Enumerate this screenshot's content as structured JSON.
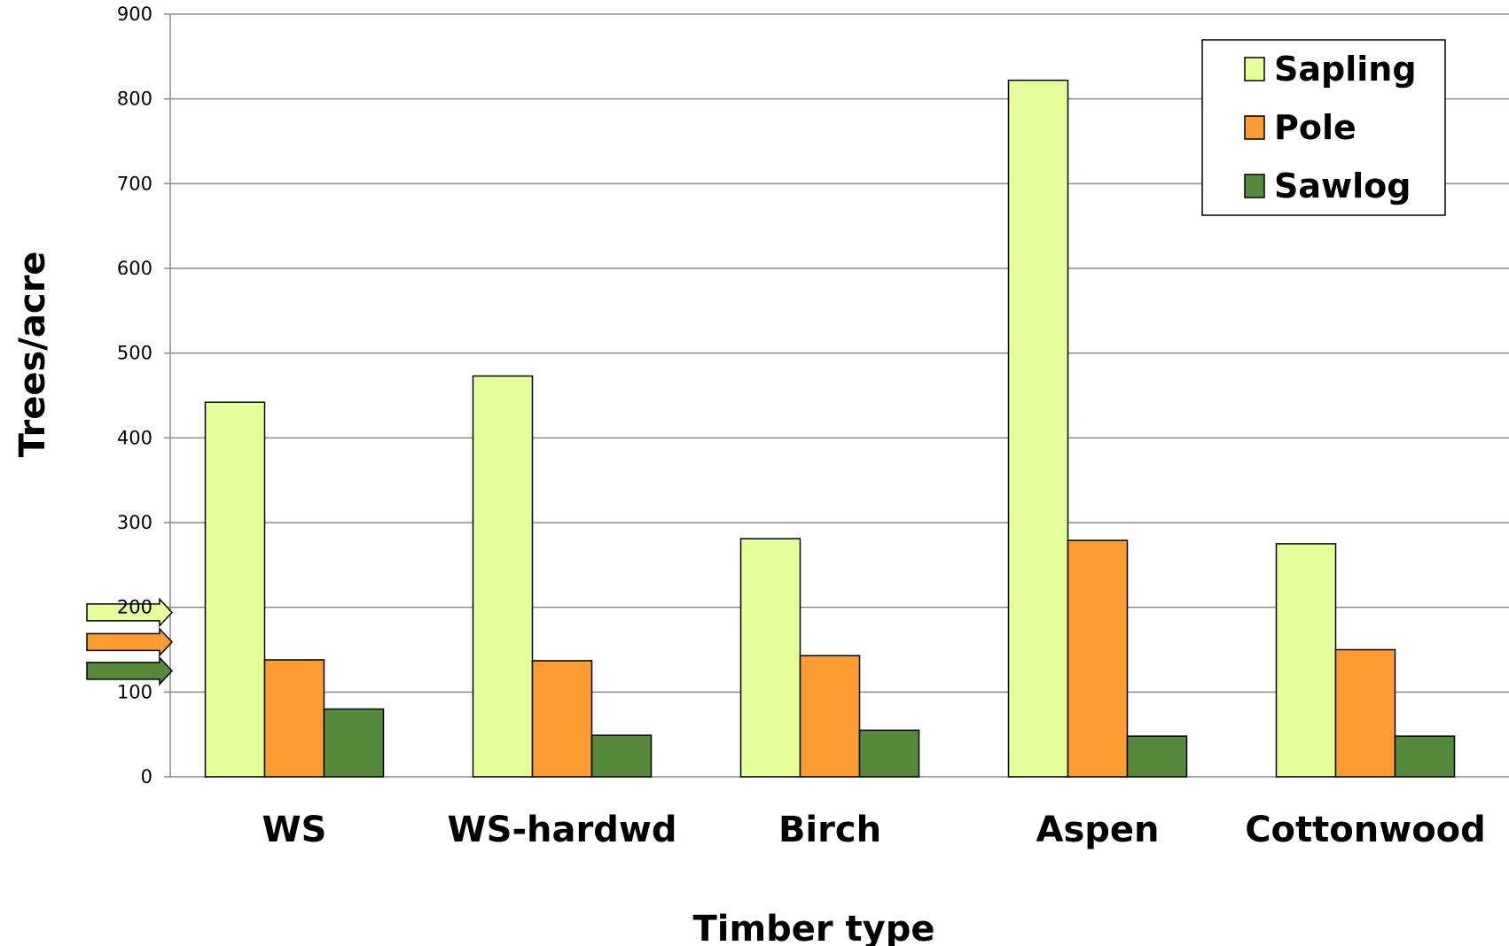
{
  "chart_data": {
    "type": "bar",
    "title": "",
    "xlabel": "Timber type",
    "ylabel": "Trees/acre",
    "categories": [
      "WS",
      "WS-hardwd",
      "Birch",
      "Aspen",
      "Cottonwood"
    ],
    "series": [
      {
        "name": "Sapling",
        "color": "#e5ff9a",
        "values": [
          442,
          473,
          281,
          822,
          275
        ]
      },
      {
        "name": "Pole",
        "color": "#fc9c33",
        "values": [
          138,
          137,
          143,
          279,
          150
        ]
      },
      {
        "name": "Sawlog",
        "color": "#558a3c",
        "values": [
          80,
          49,
          55,
          48,
          48
        ]
      }
    ],
    "ylim": [
      0,
      900
    ],
    "yticks": [
      0,
      100,
      200,
      300,
      400,
      500,
      600,
      700,
      800,
      900
    ],
    "grid": true,
    "legend": "top-right",
    "markers": {
      "description": "reference arrows",
      "values": [
        194,
        159,
        125
      ],
      "colors": [
        "#e5ff9a",
        "#fc9c33",
        "#558a3c"
      ]
    }
  }
}
